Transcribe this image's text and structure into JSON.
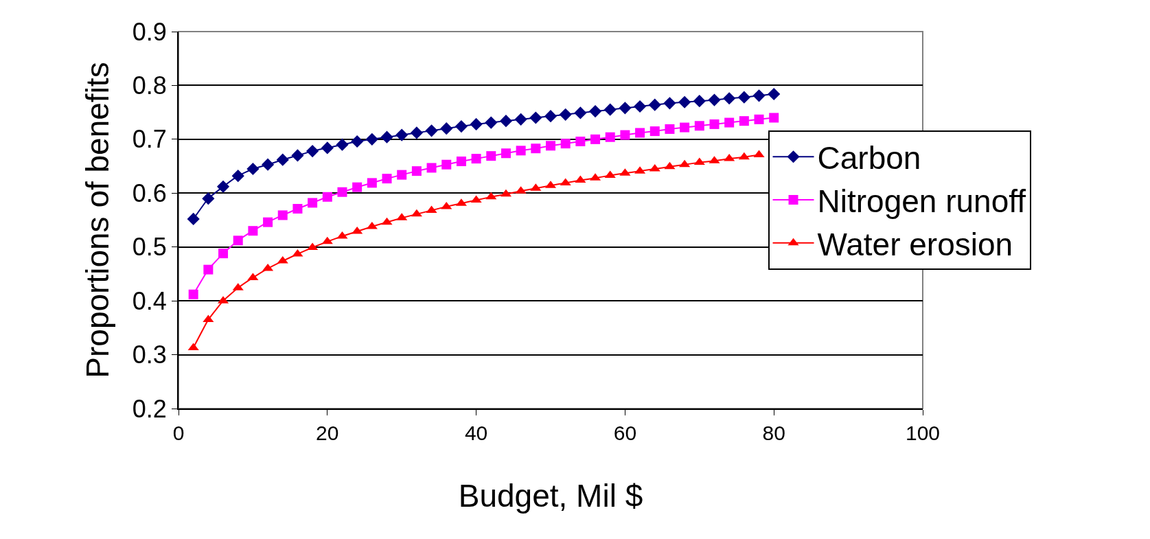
{
  "chart_data": {
    "type": "line",
    "xlabel": "Budget, Mil $",
    "ylabel": "Proportions of benefits",
    "x": [
      2,
      4,
      6,
      8,
      10,
      12,
      14,
      16,
      18,
      20,
      22,
      24,
      26,
      28,
      30,
      32,
      34,
      36,
      38,
      40,
      42,
      44,
      46,
      48,
      50,
      52,
      54,
      56,
      58,
      60,
      62,
      64,
      66,
      68,
      70,
      72,
      74,
      76,
      78,
      80
    ],
    "series": [
      {
        "name": "Carbon",
        "color": "#000080",
        "marker": "diamond",
        "values": [
          0.552,
          0.59,
          0.612,
          0.632,
          0.645,
          0.653,
          0.662,
          0.67,
          0.678,
          0.684,
          0.69,
          0.696,
          0.7,
          0.704,
          0.708,
          0.712,
          0.716,
          0.72,
          0.724,
          0.728,
          0.731,
          0.734,
          0.737,
          0.74,
          0.743,
          0.746,
          0.749,
          0.752,
          0.755,
          0.758,
          0.761,
          0.764,
          0.767,
          0.769,
          0.771,
          0.773,
          0.776,
          0.778,
          0.781,
          0.784
        ]
      },
      {
        "name": "Nitrogen runoff",
        "color": "#ff00ff",
        "marker": "square",
        "values": [
          0.412,
          0.458,
          0.488,
          0.512,
          0.53,
          0.546,
          0.559,
          0.571,
          0.582,
          0.593,
          0.602,
          0.611,
          0.619,
          0.627,
          0.634,
          0.641,
          0.647,
          0.653,
          0.659,
          0.664,
          0.669,
          0.674,
          0.679,
          0.683,
          0.688,
          0.692,
          0.696,
          0.7,
          0.704,
          0.708,
          0.712,
          0.715,
          0.719,
          0.722,
          0.725,
          0.728,
          0.731,
          0.734,
          0.737,
          0.74
        ]
      },
      {
        "name": "Water erosion",
        "color": "#ff0000",
        "marker": "triangle",
        "values": [
          0.313,
          0.365,
          0.4,
          0.424,
          0.443,
          0.46,
          0.474,
          0.487,
          0.499,
          0.51,
          0.52,
          0.529,
          0.538,
          0.546,
          0.554,
          0.561,
          0.568,
          0.575,
          0.581,
          0.587,
          0.593,
          0.598,
          0.604,
          0.609,
          0.614,
          0.619,
          0.624,
          0.628,
          0.633,
          0.637,
          0.641,
          0.645,
          0.649,
          0.653,
          0.657,
          0.66,
          0.664,
          0.667,
          0.671,
          null
        ]
      }
    ],
    "xlim": [
      0,
      100
    ],
    "xticks": [
      0,
      20,
      40,
      60,
      80,
      100
    ],
    "ylim": [
      0.2,
      0.9
    ],
    "yticks": [
      0.2,
      0.3,
      0.4,
      0.5,
      0.6,
      0.7,
      0.8,
      0.9
    ],
    "grid": "y",
    "legend": "right",
    "line_style": "solid"
  }
}
